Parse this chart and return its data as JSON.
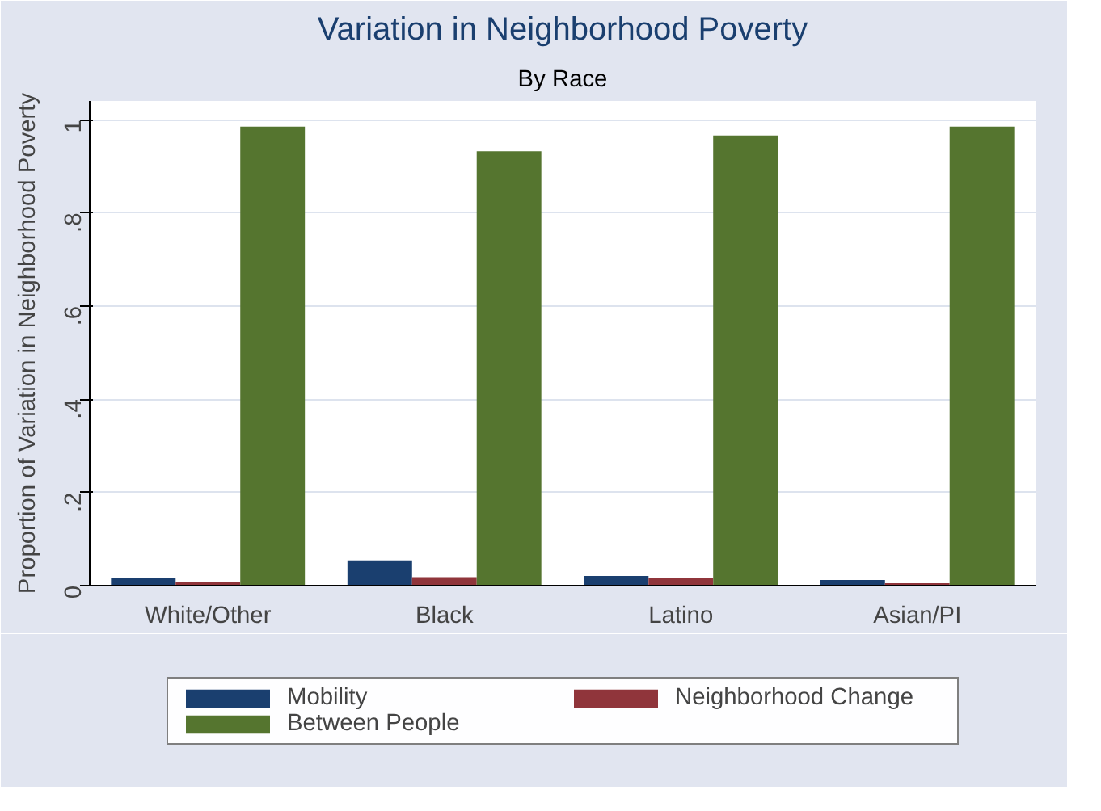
{
  "chart_data": {
    "type": "bar",
    "title": "Variation in Neighborhood Poverty",
    "subtitle": "By Race",
    "ylabel": "Proportion of Variation in Neighborhood Poverty",
    "categories": [
      "White/Other",
      "Black",
      "Latino",
      "Asian/PI"
    ],
    "series": [
      {
        "name": "Mobility",
        "color": "#1a3f6f",
        "values": [
          0.017,
          0.054,
          0.021,
          0.012
        ]
      },
      {
        "name": "Neighborhood Change",
        "color": "#90353b",
        "values": [
          0.008,
          0.018,
          0.016,
          0.005
        ]
      },
      {
        "name": "Between People",
        "color": "#55752f",
        "values": [
          0.985,
          0.932,
          0.966,
          0.985
        ]
      }
    ],
    "ylim": [
      0,
      1.04
    ],
    "yticks": [
      {
        "value": 0,
        "label": "0"
      },
      {
        "value": 0.2,
        "label": ".2"
      },
      {
        "value": 0.4,
        "label": ".4"
      },
      {
        "value": 0.6,
        "label": ".6"
      },
      {
        "value": 0.8,
        "label": ".8"
      },
      {
        "value": 1,
        "label": "1"
      }
    ],
    "grid": "y",
    "legend": "bottom"
  }
}
